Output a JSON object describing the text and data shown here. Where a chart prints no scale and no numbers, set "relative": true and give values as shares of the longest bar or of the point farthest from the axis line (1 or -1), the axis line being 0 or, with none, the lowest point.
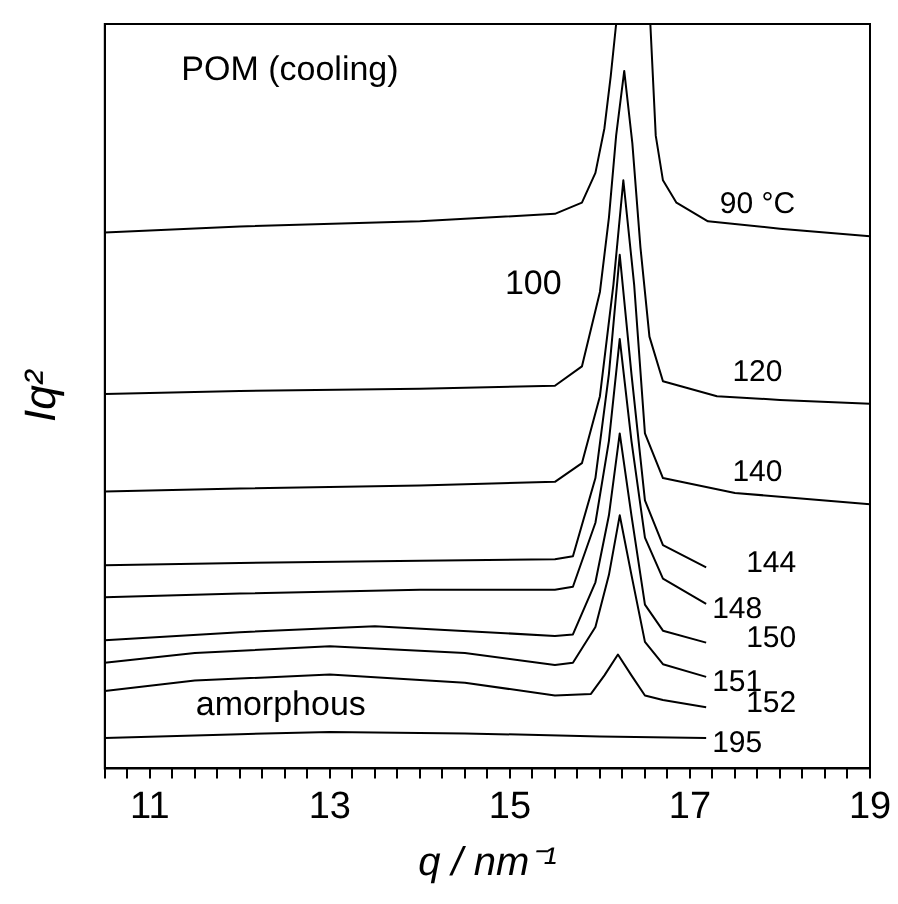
{
  "chart_data": {
    "type": "line",
    "relative": true,
    "xlabel": "q / nm⁻¹",
    "ylabel": "Iq²",
    "xlim": [
      10.5,
      19
    ],
    "xticks": [
      {
        "value": 10.5,
        "label": null
      },
      {
        "value": 10.75,
        "label": null
      },
      11,
      {
        "value": 11.25,
        "label": null
      },
      {
        "value": 11.5,
        "label": null
      },
      {
        "value": 11.75,
        "label": null
      },
      {
        "value": 12,
        "label": null
      },
      {
        "value": 12.25,
        "label": null
      },
      {
        "value": 12.5,
        "label": null
      },
      {
        "value": 12.75,
        "label": null
      },
      13,
      {
        "value": 13.25,
        "label": null
      },
      {
        "value": 13.5,
        "label": null
      },
      {
        "value": 13.75,
        "label": null
      },
      {
        "value": 14,
        "label": null
      },
      {
        "value": 14.25,
        "label": null
      },
      {
        "value": 14.5,
        "label": null
      },
      {
        "value": 14.75,
        "label": null
      },
      15,
      {
        "value": 15.25,
        "label": null
      },
      {
        "value": 15.5,
        "label": null
      },
      {
        "value": 15.75,
        "label": null
      },
      {
        "value": 16,
        "label": null
      },
      {
        "value": 16.25,
        "label": null
      },
      {
        "value": 16.5,
        "label": null
      },
      {
        "value": 16.75,
        "label": null
      },
      17,
      {
        "value": 17.25,
        "label": null
      },
      {
        "value": 17.5,
        "label": null
      },
      {
        "value": 17.75,
        "label": null
      },
      {
        "value": 18,
        "label": null
      },
      {
        "value": 18.25,
        "label": null
      },
      {
        "value": 18.5,
        "label": null
      },
      {
        "value": 18.75,
        "label": null
      },
      19
    ],
    "grid": false,
    "legend": false,
    "marker": "none",
    "line_style": "solid",
    "annotations": [
      "POM (cooling)",
      "100",
      "amorphous"
    ],
    "series": [
      {
        "name": "90 °C",
        "color": "#000000",
        "x": [
          10.5,
          12,
          14,
          15.5,
          15.8,
          15.95,
          16.05,
          16.12,
          16.18,
          16.37,
          16.56,
          16.62,
          16.7,
          16.85,
          17.2,
          18,
          19
        ],
        "values": [
          0.72,
          0.728,
          0.735,
          0.745,
          0.76,
          0.8,
          0.86,
          0.93,
          1,
          1,
          1,
          0.85,
          0.79,
          0.76,
          0.735,
          0.725,
          0.715
        ]
      },
      {
        "name": "120",
        "color": "#000000",
        "x": [
          10.5,
          12,
          14,
          15.5,
          15.8,
          16.0,
          16.1,
          16.18,
          16.27,
          16.36,
          16.45,
          16.55,
          16.7,
          17.3,
          18,
          19
        ],
        "values": [
          0.503,
          0.507,
          0.51,
          0.514,
          0.54,
          0.64,
          0.74,
          0.85,
          0.937,
          0.84,
          0.7,
          0.58,
          0.52,
          0.5,
          0.495,
          0.49
        ]
      },
      {
        "name": "140",
        "color": "#000000",
        "x": [
          10.5,
          12,
          14,
          15.5,
          15.8,
          16.0,
          16.15,
          16.26,
          16.38,
          16.5,
          16.7,
          17.5,
          18.5,
          19
        ],
        "values": [
          0.372,
          0.376,
          0.38,
          0.385,
          0.41,
          0.5,
          0.65,
          0.79,
          0.65,
          0.45,
          0.39,
          0.37,
          0.36,
          0.355
        ]
      },
      {
        "name": "144",
        "color": "#000000",
        "x": [
          10.5,
          12,
          14,
          15.5,
          15.7,
          15.95,
          16.1,
          16.22,
          16.35,
          16.5,
          16.7,
          17.18
        ],
        "values": [
          0.273,
          0.276,
          0.279,
          0.281,
          0.285,
          0.39,
          0.53,
          0.69,
          0.53,
          0.36,
          0.3,
          0.27
        ]
      },
      {
        "name": "148",
        "color": "#000000",
        "x": [
          10.5,
          12,
          14,
          15.5,
          15.7,
          15.95,
          16.1,
          16.22,
          16.35,
          16.5,
          16.7,
          17.18
        ],
        "values": [
          0.23,
          0.235,
          0.24,
          0.24,
          0.244,
          0.33,
          0.44,
          0.577,
          0.44,
          0.31,
          0.255,
          0.221
        ]
      },
      {
        "name": "150",
        "color": "#000000",
        "x": [
          10.5,
          12,
          13.5,
          15.5,
          15.7,
          15.95,
          16.1,
          16.22,
          16.35,
          16.5,
          16.7,
          17.18
        ],
        "values": [
          0.172,
          0.183,
          0.191,
          0.178,
          0.18,
          0.25,
          0.34,
          0.45,
          0.34,
          0.22,
          0.185,
          0.169
        ]
      },
      {
        "name": "151",
        "color": "#000000",
        "x": [
          10.5,
          11.5,
          13,
          14.5,
          15.5,
          15.7,
          15.95,
          16.1,
          16.22,
          16.35,
          16.5,
          16.7,
          17.18
        ],
        "values": [
          0.142,
          0.155,
          0.164,
          0.155,
          0.139,
          0.142,
          0.19,
          0.26,
          0.34,
          0.26,
          0.17,
          0.14,
          0.123
        ]
      },
      {
        "name": "152",
        "color": "#000000",
        "x": [
          10.5,
          11.5,
          13,
          14.5,
          15.5,
          15.9,
          16.05,
          16.2,
          16.35,
          16.5,
          16.7,
          17.18
        ],
        "values": [
          0.104,
          0.118,
          0.126,
          0.115,
          0.098,
          0.1,
          0.125,
          0.153,
          0.125,
          0.098,
          0.092,
          0.082
        ]
      },
      {
        "name": "195",
        "color": "#000000",
        "x": [
          10.5,
          12,
          13,
          14.5,
          16,
          17.18
        ],
        "values": [
          0.041,
          0.046,
          0.049,
          0.047,
          0.043,
          0.041
        ]
      }
    ]
  }
}
